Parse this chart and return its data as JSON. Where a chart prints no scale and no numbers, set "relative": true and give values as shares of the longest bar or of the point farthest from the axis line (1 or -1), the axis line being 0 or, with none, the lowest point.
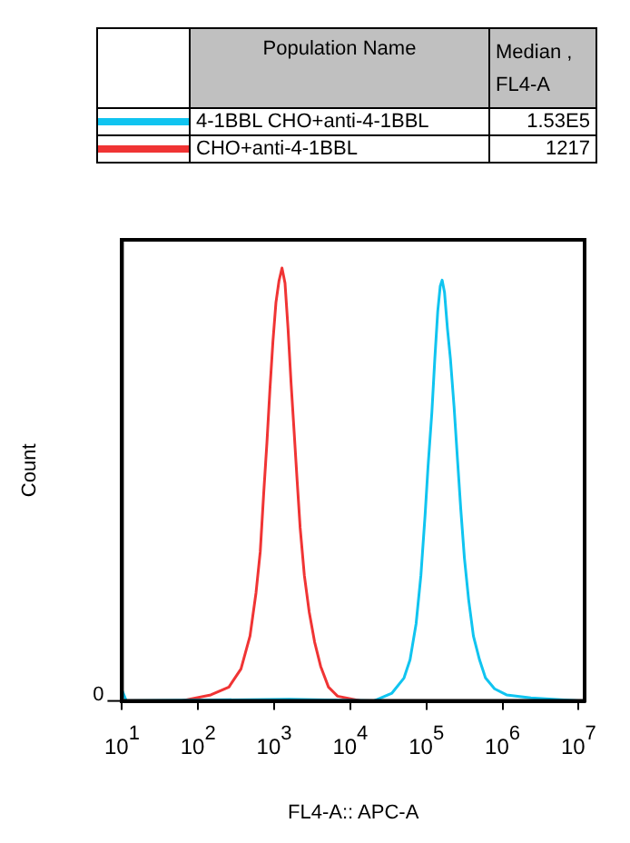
{
  "chart_data": {
    "type": "line",
    "xlabel": "FL4-A:: APC-A",
    "ylabel": "Count",
    "relative": true,
    "log": "x",
    "legend": "top",
    "grid": false,
    "marker": "none",
    "annotations": [
      "Population Name",
      "Median , FL4-A",
      "1.53E5",
      "1217",
      "0"
    ],
    "xlim": [
      10,
      12000000
    ],
    "xticks": [
      {
        "value": 10,
        "label": "10$^{1}$"
      },
      {
        "value": 100,
        "label": "10$^{2}$"
      },
      {
        "value": 1000,
        "label": "10$^{3}$"
      },
      {
        "value": 10000,
        "label": "10$^{4}$"
      },
      {
        "value": 100000,
        "label": "10$^{5}$"
      },
      {
        "value": 1000000,
        "label": "10$^{6}$"
      },
      {
        "value": 10000000,
        "label": "10$^{7}$"
      }
    ],
    "series": [
      {
        "name": "4-1BBL CHO+anti-4-1BBL",
        "color": "#10c4f0",
        "x": [
          10,
          11.4,
          1578,
          20370,
          35240,
          50800,
          61000,
          73200,
          84700,
          96200,
          105000,
          118000,
          129000,
          141000,
          152000,
          161000,
          173000,
          189000,
          207000,
          231000,
          254000,
          283000,
          316000,
          359000,
          415000,
          499000,
          598000,
          787000,
          1130000,
          2360000,
          10000000
        ],
        "values": [
          0.025,
          0,
          0.004,
          0,
          0.018,
          0.053,
          0.095,
          0.178,
          0.29,
          0.43,
          0.54,
          0.666,
          0.79,
          0.9,
          0.958,
          0.972,
          0.944,
          0.86,
          0.79,
          0.68,
          0.568,
          0.443,
          0.33,
          0.234,
          0.15,
          0.095,
          0.053,
          0.028,
          0.014,
          0.007,
          0
        ]
      },
      {
        "name": "CHO+anti-4-1BBL",
        "color": "#f03434",
        "x": [
          59,
          147,
          254,
          366,
          481,
          577,
          656,
          731,
          802,
          879,
          962,
          1054,
          1156,
          1266,
          1387,
          1520,
          1665,
          1824,
          2000,
          2193,
          2490,
          2881,
          3398,
          4076,
          5171,
          6808,
          14130
        ],
        "values": [
          0,
          0.014,
          0.032,
          0.074,
          0.15,
          0.25,
          0.345,
          0.485,
          0.596,
          0.72,
          0.83,
          0.92,
          0.97,
          1,
          0.965,
          0.86,
          0.735,
          0.624,
          0.51,
          0.4,
          0.29,
          0.206,
          0.136,
          0.08,
          0.032,
          0.011,
          0
        ]
      }
    ]
  }
}
